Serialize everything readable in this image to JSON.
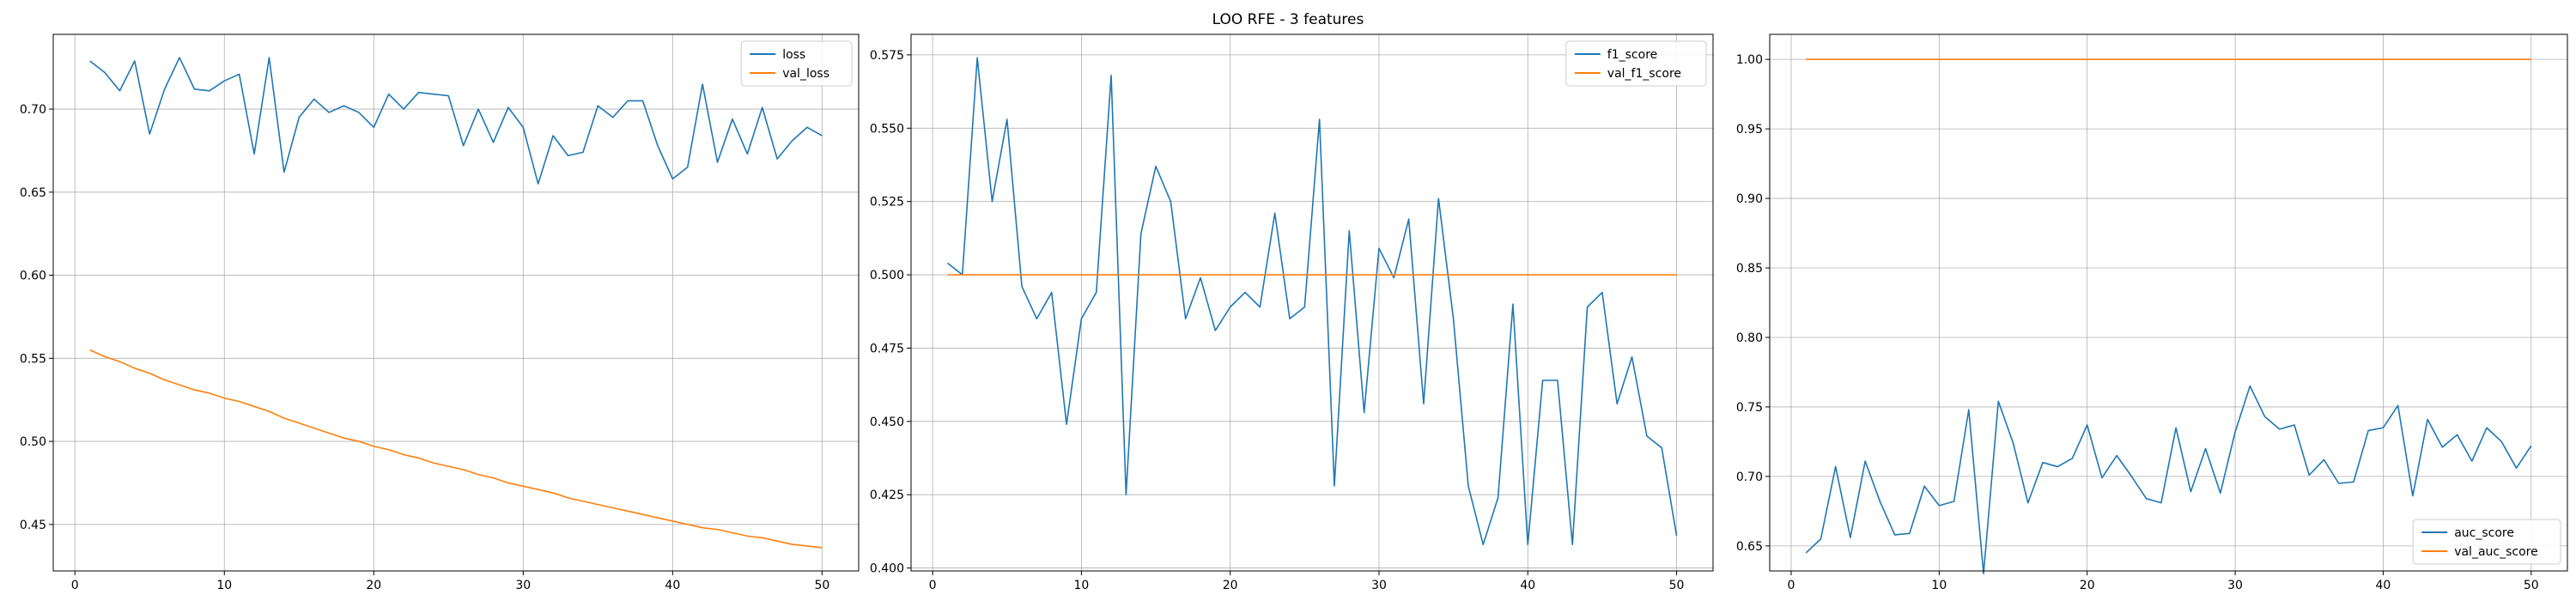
{
  "figure": {
    "title": "LOO RFE - 3 features"
  },
  "chart_data": [
    {
      "type": "line",
      "title": "",
      "xlabel": "",
      "ylabel": "",
      "xlim": [
        -1.45,
        52.45
      ],
      "ylim": [
        0.422,
        0.745
      ],
      "xticks": [
        0,
        10,
        20,
        30,
        40,
        50
      ],
      "yticks": [
        0.45,
        0.5,
        0.55,
        0.6,
        0.65,
        0.7
      ],
      "ytick_decimals": 2,
      "grid": true,
      "legend_position": "upper right",
      "series": [
        {
          "name": "loss",
          "color": "#1f77b4",
          "values": [
            0.729,
            0.722,
            0.711,
            0.729,
            0.685,
            0.712,
            0.731,
            0.712,
            0.711,
            0.717,
            0.721,
            0.673,
            0.731,
            0.662,
            0.695,
            0.706,
            0.698,
            0.702,
            0.698,
            0.689,
            0.709,
            0.7,
            0.71,
            0.709,
            0.708,
            0.678,
            0.7,
            0.68,
            0.701,
            0.689,
            0.655,
            0.684,
            0.672,
            0.674,
            0.702,
            0.695,
            0.705,
            0.705,
            0.678,
            0.658,
            0.665,
            0.715,
            0.668,
            0.694,
            0.673,
            0.701,
            0.67,
            0.681,
            0.689,
            0.684
          ]
        },
        {
          "name": "val_loss",
          "color": "#ff7f0e",
          "values": [
            0.555,
            0.551,
            0.548,
            0.544,
            0.541,
            0.537,
            0.534,
            0.531,
            0.529,
            0.526,
            0.524,
            0.521,
            0.518,
            0.514,
            0.511,
            0.508,
            0.505,
            0.502,
            0.5,
            0.497,
            0.495,
            0.492,
            0.49,
            0.487,
            0.485,
            0.483,
            0.48,
            0.478,
            0.475,
            0.473,
            0.471,
            0.469,
            0.466,
            0.464,
            0.462,
            0.46,
            0.458,
            0.456,
            0.454,
            0.452,
            0.45,
            0.448,
            0.447,
            0.445,
            0.443,
            0.442,
            0.44,
            0.438,
            0.437,
            0.436
          ]
        }
      ]
    },
    {
      "type": "line",
      "title": "",
      "xlabel": "",
      "ylabel": "",
      "xlim": [
        -1.45,
        52.45
      ],
      "ylim": [
        0.399,
        0.582
      ],
      "xticks": [
        0,
        10,
        20,
        30,
        40,
        50
      ],
      "yticks": [
        0.4,
        0.425,
        0.45,
        0.475,
        0.5,
        0.525,
        0.55,
        0.575
      ],
      "ytick_decimals": 3,
      "grid": true,
      "legend_position": "upper right",
      "series": [
        {
          "name": "f1_score",
          "color": "#1f77b4",
          "values": [
            0.504,
            0.5,
            0.574,
            0.525,
            0.553,
            0.496,
            0.485,
            0.494,
            0.449,
            0.485,
            0.494,
            0.568,
            0.425,
            0.514,
            0.537,
            0.525,
            0.485,
            0.499,
            0.481,
            0.489,
            0.494,
            0.489,
            0.521,
            0.485,
            0.489,
            0.553,
            0.428,
            0.515,
            0.453,
            0.509,
            0.499,
            0.519,
            0.456,
            0.526,
            0.485,
            0.428,
            0.408,
            0.424,
            0.49,
            0.408,
            0.464,
            0.464,
            0.408,
            0.489,
            0.494,
            0.456,
            0.472,
            0.445,
            0.441,
            0.411
          ]
        },
        {
          "name": "val_f1_score",
          "color": "#ff7f0e",
          "values": [
            0.5,
            0.5,
            0.5,
            0.5,
            0.5,
            0.5,
            0.5,
            0.5,
            0.5,
            0.5,
            0.5,
            0.5,
            0.5,
            0.5,
            0.5,
            0.5,
            0.5,
            0.5,
            0.5,
            0.5,
            0.5,
            0.5,
            0.5,
            0.5,
            0.5,
            0.5,
            0.5,
            0.5,
            0.5,
            0.5,
            0.5,
            0.5,
            0.5,
            0.5,
            0.5,
            0.5,
            0.5,
            0.5,
            0.5,
            0.5,
            0.5,
            0.5,
            0.5,
            0.5,
            0.5,
            0.5,
            0.5,
            0.5,
            0.5,
            0.5
          ]
        }
      ]
    },
    {
      "type": "line",
      "title": "",
      "xlabel": "",
      "ylabel": "",
      "xlim": [
        -1.45,
        52.45
      ],
      "ylim": [
        0.632,
        1.018
      ],
      "xticks": [
        0,
        10,
        20,
        30,
        40,
        50
      ],
      "yticks": [
        0.65,
        0.7,
        0.75,
        0.8,
        0.85,
        0.9,
        0.95,
        1.0
      ],
      "ytick_decimals": 2,
      "grid": true,
      "legend_position": "lower right",
      "series": [
        {
          "name": "auc_score",
          "color": "#1f77b4",
          "values": [
            0.645,
            0.655,
            0.707,
            0.656,
            0.711,
            0.682,
            0.658,
            0.659,
            0.693,
            0.679,
            0.682,
            0.748,
            0.63,
            0.754,
            0.724,
            0.681,
            0.71,
            0.707,
            0.713,
            0.737,
            0.699,
            0.715,
            0.7,
            0.684,
            0.681,
            0.735,
            0.689,
            0.72,
            0.688,
            0.732,
            0.765,
            0.743,
            0.734,
            0.737,
            0.701,
            0.712,
            0.695,
            0.696,
            0.733,
            0.735,
            0.751,
            0.686,
            0.741,
            0.721,
            0.73,
            0.711,
            0.735,
            0.725,
            0.706,
            0.722
          ]
        },
        {
          "name": "val_auc_score",
          "color": "#ff7f0e",
          "values": [
            1.0,
            1.0,
            1.0,
            1.0,
            1.0,
            1.0,
            1.0,
            1.0,
            1.0,
            1.0,
            1.0,
            1.0,
            1.0,
            1.0,
            1.0,
            1.0,
            1.0,
            1.0,
            1.0,
            1.0,
            1.0,
            1.0,
            1.0,
            1.0,
            1.0,
            1.0,
            1.0,
            1.0,
            1.0,
            1.0,
            1.0,
            1.0,
            1.0,
            1.0,
            1.0,
            1.0,
            1.0,
            1.0,
            1.0,
            1.0,
            1.0,
            1.0,
            1.0,
            1.0,
            1.0,
            1.0,
            1.0,
            1.0,
            1.0,
            1.0
          ]
        }
      ]
    }
  ]
}
